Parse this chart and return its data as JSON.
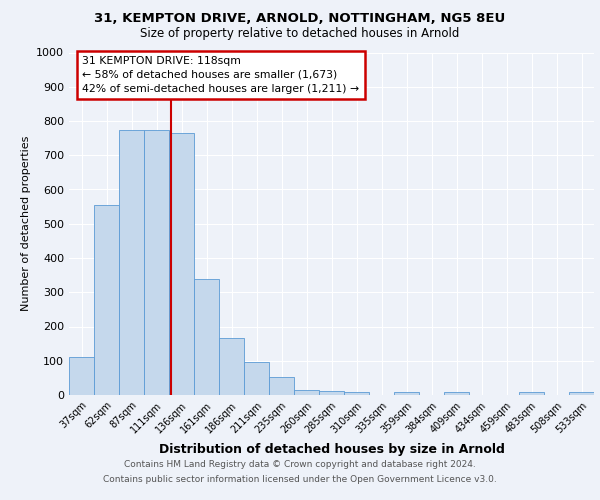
{
  "title1": "31, KEMPTON DRIVE, ARNOLD, NOTTINGHAM, NG5 8EU",
  "title2": "Size of property relative to detached houses in Arnold",
  "xlabel": "Distribution of detached houses by size in Arnold",
  "ylabel": "Number of detached properties",
  "categories": [
    "37sqm",
    "62sqm",
    "87sqm",
    "111sqm",
    "136sqm",
    "161sqm",
    "186sqm",
    "211sqm",
    "235sqm",
    "260sqm",
    "285sqm",
    "310sqm",
    "335sqm",
    "359sqm",
    "384sqm",
    "409sqm",
    "434sqm",
    "459sqm",
    "483sqm",
    "508sqm",
    "533sqm"
  ],
  "values": [
    112,
    555,
    775,
    775,
    765,
    340,
    165,
    97,
    53,
    15,
    12,
    8,
    0,
    8,
    0,
    8,
    0,
    0,
    8,
    0,
    8
  ],
  "bar_color": "#c5d8ec",
  "bar_edge_color": "#5b9bd5",
  "marker_label": "31 KEMPTON DRIVE: 118sqm",
  "annotation_line1": "← 58% of detached houses are smaller (1,673)",
  "annotation_line2": "42% of semi-detached houses are larger (1,211) →",
  "marker_color": "#cc0000",
  "annotation_box_edge": "#cc0000",
  "ylim": [
    0,
    1000
  ],
  "yticks": [
    0,
    100,
    200,
    300,
    400,
    500,
    600,
    700,
    800,
    900,
    1000
  ],
  "background_color": "#eef2f9",
  "fig_background_color": "#eef2f9",
  "footer1": "Contains HM Land Registry data © Crown copyright and database right 2024.",
  "footer2": "Contains public sector information licensed under the Open Government Licence v3.0."
}
